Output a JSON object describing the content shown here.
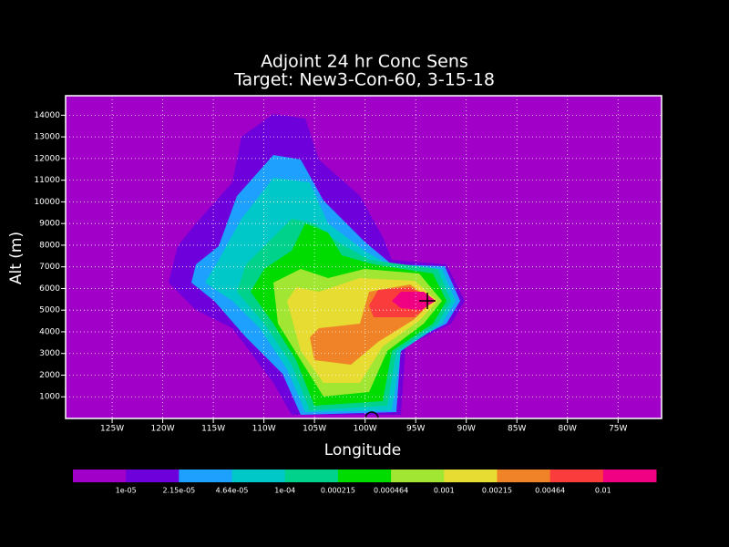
{
  "chart_data": {
    "type": "contour",
    "title": "Adjoint 24 hr Conc Sens",
    "subtitle": "Target: New3-Con-60, 3-15-18",
    "x_label": "Longitude",
    "y_label": "Alt (m)",
    "xlim": [
      -129.6,
      -70.7
    ],
    "ylim": [
      0,
      14900
    ],
    "xticks": [
      {
        "value": -125,
        "label": "125W"
      },
      {
        "value": -120,
        "label": "120W"
      },
      {
        "value": -115,
        "label": "115W"
      },
      {
        "value": -110,
        "label": "110W"
      },
      {
        "value": -105,
        "label": "105W"
      },
      {
        "value": -100,
        "label": "100W"
      },
      {
        "value": -95,
        "label": "95W"
      },
      {
        "value": -90,
        "label": "90W"
      },
      {
        "value": -85,
        "label": "85W"
      },
      {
        "value": -80,
        "label": "80W"
      },
      {
        "value": -75,
        "label": "75W"
      }
    ],
    "yticks": [
      1000,
      2000,
      3000,
      4000,
      5000,
      6000,
      7000,
      8000,
      9000,
      10000,
      11000,
      12000,
      13000,
      14000
    ],
    "grid": true,
    "levels": [
      {
        "value": 1e-05,
        "label": "1e-05"
      },
      {
        "value": 2.15e-05,
        "label": "2.15e-05"
      },
      {
        "value": 4.64e-05,
        "label": "4.64e-05"
      },
      {
        "value": 0.0001,
        "label": "1e-04"
      },
      {
        "value": 0.000215,
        "label": "0.000215"
      },
      {
        "value": 0.000464,
        "label": "0.000464"
      },
      {
        "value": 0.001,
        "label": "0.001"
      },
      {
        "value": 0.00215,
        "label": "0.00215"
      },
      {
        "value": 0.00464,
        "label": "0.00464"
      },
      {
        "value": 0.01,
        "label": "0.01"
      }
    ],
    "colors": [
      "#a000c8",
      "#6e00dc",
      "#1ea0ff",
      "#00c8c8",
      "#00d28c",
      "#00dc00",
      "#a0e632",
      "#e6dc32",
      "#f08228",
      "#fa3c3c",
      "#f00082"
    ]
  }
}
